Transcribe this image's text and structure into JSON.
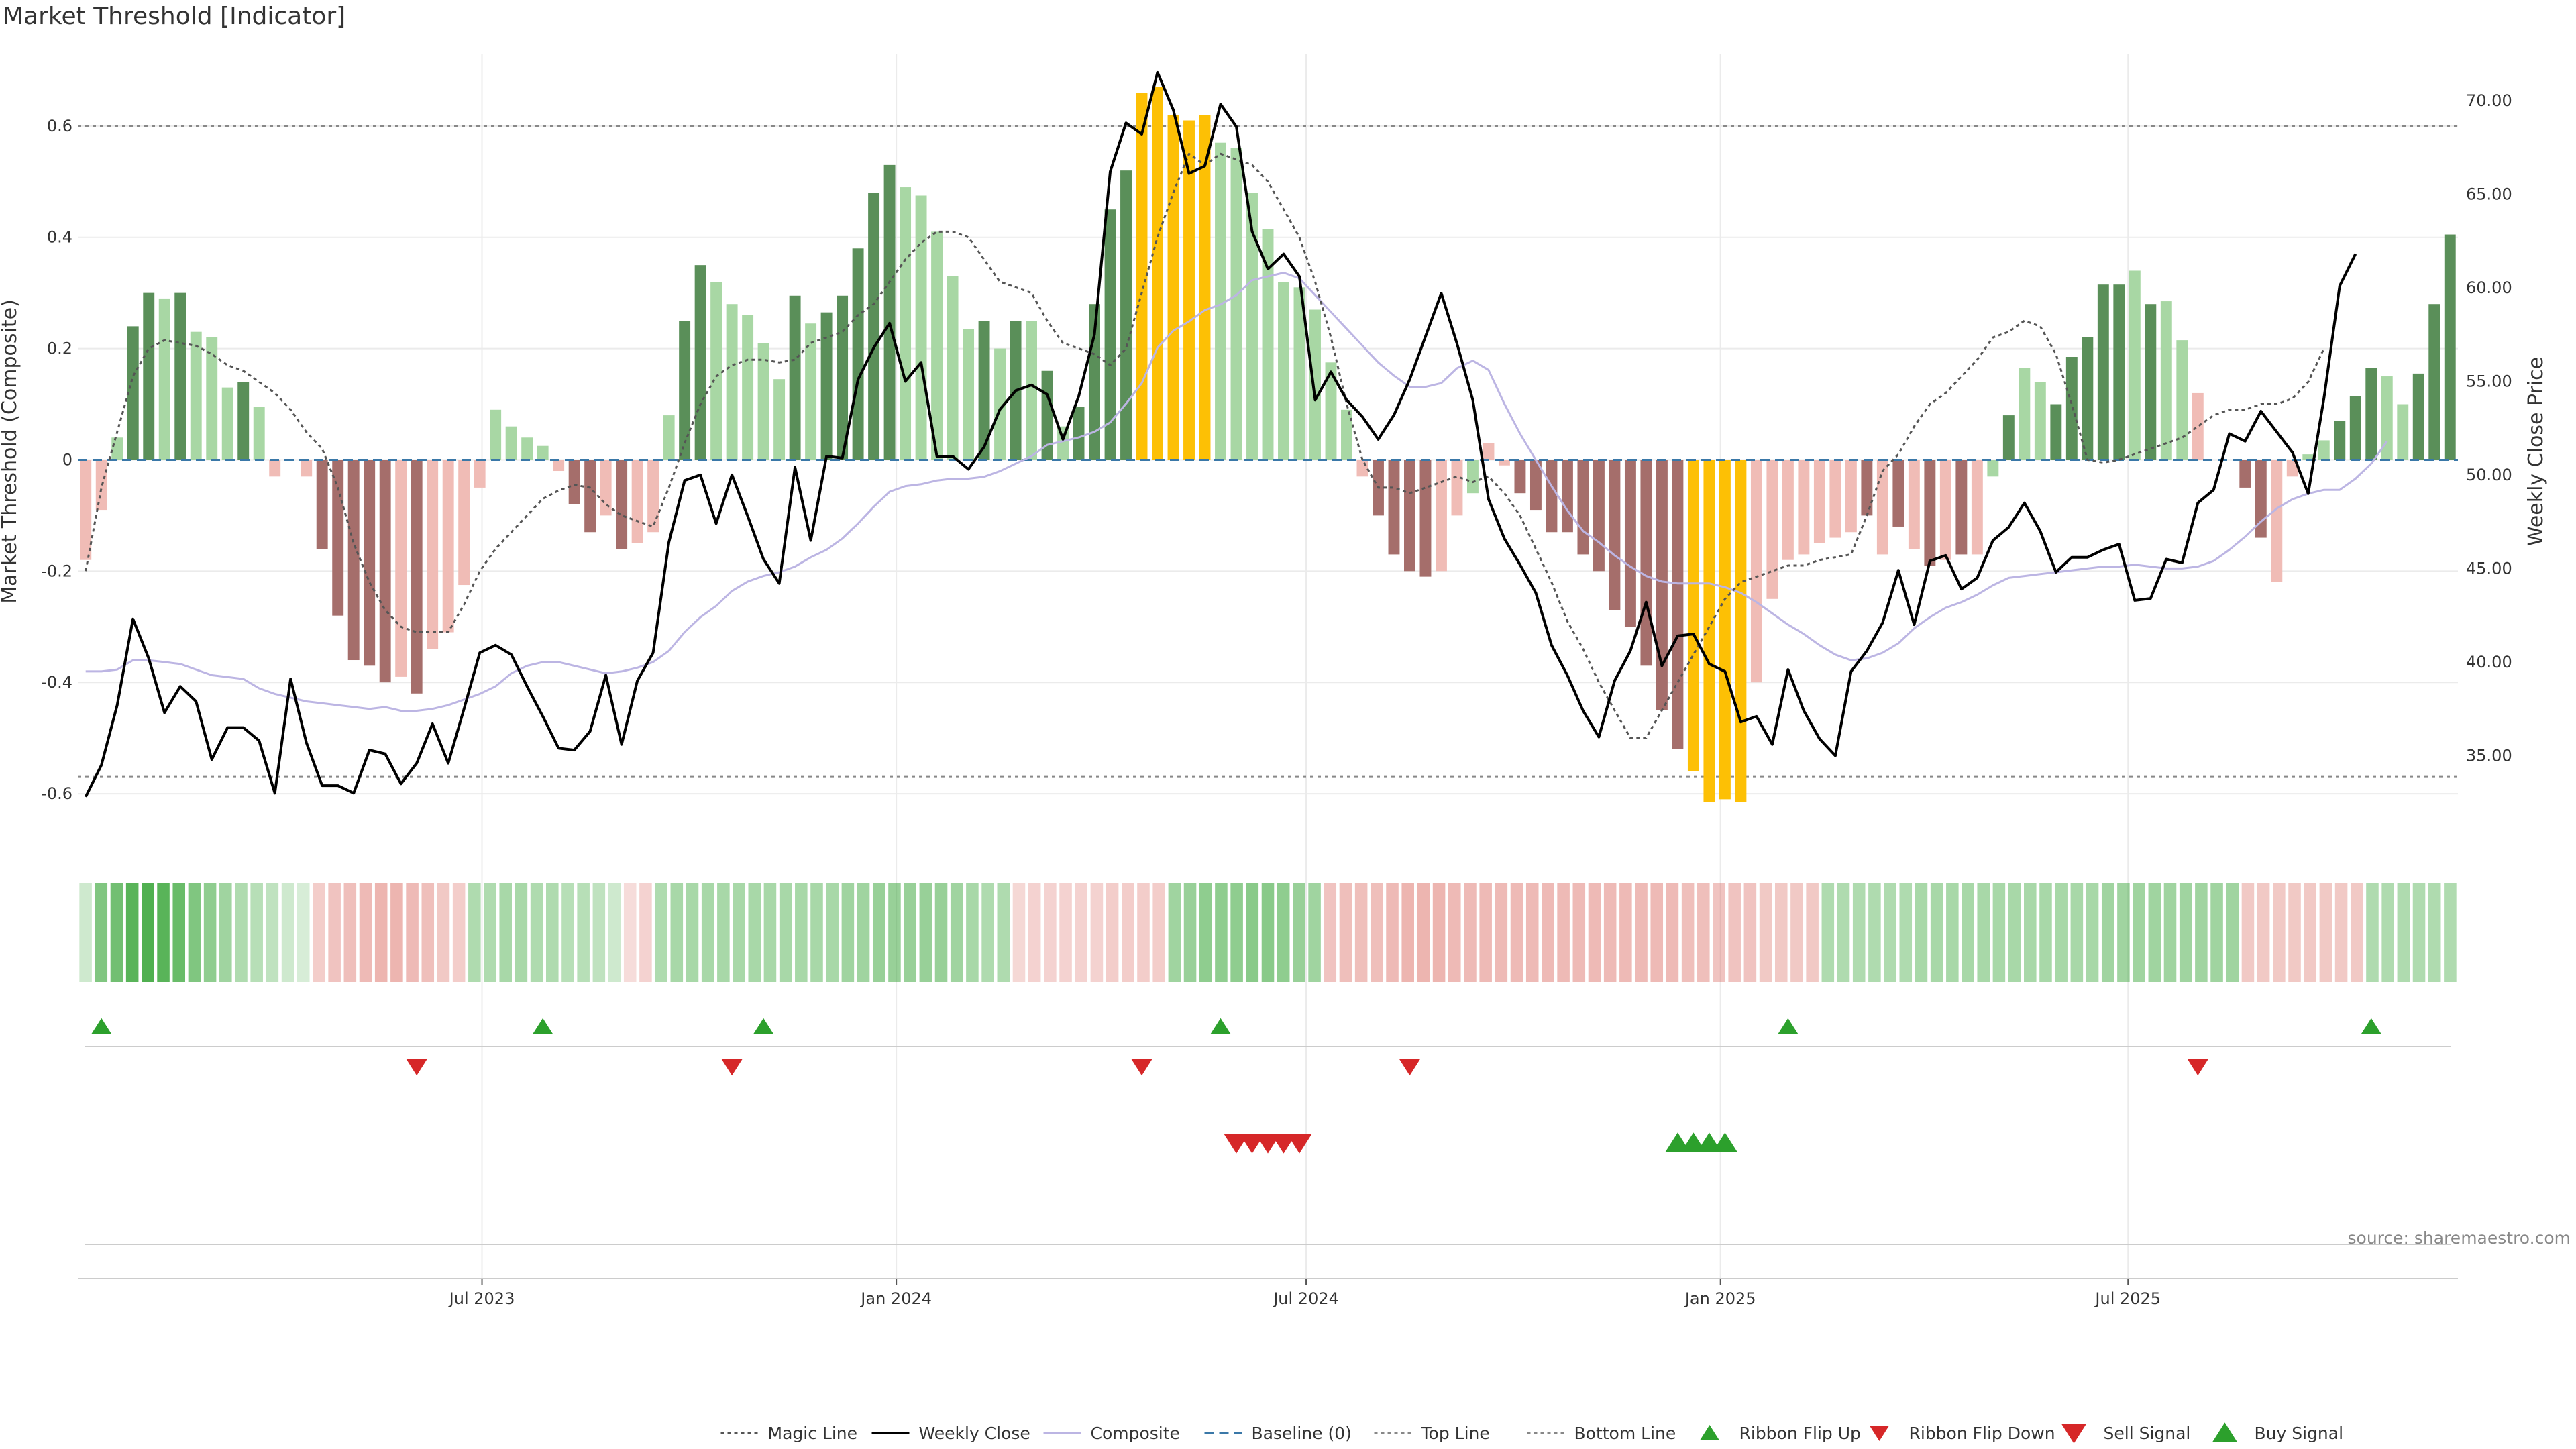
{
  "title": "Market Threshold [Indicator]",
  "source": "source: sharemaestro.com",
  "colors": {
    "bar_pos_strong": "#5a8f59",
    "bar_pos_weak": "#a8d7a4",
    "bar_neg_strong": "#a56e6b",
    "bar_neg_weak": "#f0bcb6",
    "bar_extreme": "#fdc005",
    "magic_line": "#555555",
    "weekly_close": "#000000",
    "composite": "#bcb5e3",
    "baseline": "#3a78a8",
    "threshold_line": "#888888",
    "up_marker": "#2ca02c",
    "down_marker": "#d62728",
    "grid": "#ebebeb"
  },
  "chart_data": {
    "type": "bar",
    "x_axis": {
      "type": "date",
      "start_date": "2023-01-06",
      "frequency": "weekly",
      "tick_labels": [
        "Jul 2023",
        "Jan 2024",
        "Jul 2024",
        "Jan 2025",
        "Jul 2025"
      ],
      "tick_dates": [
        "2023-07-01",
        "2024-01-01",
        "2024-07-01",
        "2025-01-01",
        "2025-07-01"
      ]
    },
    "y_left": {
      "label": "Market Threshold (Composite)",
      "range": [
        -0.7,
        0.73
      ],
      "ticks": [
        -0.6,
        -0.4,
        -0.2,
        0,
        0.2,
        0.4,
        0.6
      ],
      "tick_labels": [
        "-0.6",
        "-0.4",
        "-0.2",
        "0",
        "0.2",
        "0.4",
        "0.6"
      ]
    },
    "y_right": {
      "label": "Weekly Close Price",
      "range": [
        30.0,
        72.5
      ],
      "ticks": [
        35,
        40,
        45,
        50,
        55,
        60,
        65,
        70
      ],
      "tick_labels": [
        "35.00",
        "40.00",
        "45.00",
        "50.00",
        "55.00",
        "60.00",
        "65.00",
        "70.00"
      ]
    },
    "top_line": 0.6,
    "bottom_line": -0.57,
    "baseline": 0,
    "histogram": {
      "name": "Market Threshold",
      "values": [
        -0.18,
        -0.09,
        0.04,
        0.24,
        0.3,
        0.29,
        0.3,
        0.23,
        0.22,
        0.13,
        0.14,
        0.095,
        -0.03,
        0,
        -0.03,
        -0.16,
        -0.28,
        -0.36,
        -0.37,
        -0.4,
        -0.39,
        -0.42,
        -0.34,
        -0.31,
        -0.225,
        -0.05,
        0.09,
        0.06,
        0.04,
        0.025,
        -0.02,
        -0.08,
        -0.13,
        -0.1,
        -0.16,
        -0.15,
        -0.13,
        0.08,
        0.25,
        0.35,
        0.32,
        0.28,
        0.26,
        0.21,
        0.145,
        0.295,
        0.245,
        0.265,
        0.295,
        0.38,
        0.48,
        0.53,
        0.49,
        0.475,
        0.41,
        0.33,
        0.235,
        0.25,
        0.2,
        0.25,
        0.25,
        0.16,
        0.06,
        0.095,
        0.28,
        0.45,
        0.52,
        0.66,
        0.67,
        0.62,
        0.61,
        0.62,
        0.57,
        0.56,
        0.48,
        0.415,
        0.32,
        0.31,
        0.27,
        0.175,
        0.09,
        -0.03,
        -0.1,
        -0.17,
        -0.2,
        -0.21,
        -0.2,
        -0.1,
        -0.06,
        0.03,
        -0.01,
        -0.06,
        -0.09,
        -0.13,
        -0.13,
        -0.17,
        -0.2,
        -0.27,
        -0.3,
        -0.37,
        -0.45,
        -0.52,
        -0.56,
        -0.615,
        -0.61,
        -0.615,
        -0.4,
        -0.25,
        -0.18,
        -0.17,
        -0.15,
        -0.14,
        -0.13,
        -0.1,
        -0.17,
        -0.12,
        -0.16,
        -0.19,
        -0.18,
        -0.17,
        -0.17,
        -0.03,
        0.08,
        0.165,
        0.14,
        0.1,
        0.185,
        0.22,
        0.315,
        0.315,
        0.34,
        0.28,
        0.285,
        0.215,
        0.12,
        0,
        0,
        -0.05,
        -0.14,
        -0.22,
        -0.03,
        0.01,
        0.035,
        0.07,
        0.115,
        0.165,
        0.15,
        0.1,
        0.155,
        0.28,
        0.405
      ],
      "categories": [
        "pos_weak",
        "pos_strong",
        "neg_weak",
        "neg_strong",
        "extreme"
      ],
      "category_codes": [
        "NW",
        "NW",
        "PW",
        "PS",
        "PS",
        "PW",
        "PS",
        "PW",
        "PW",
        "PW",
        "PS",
        "PW",
        "NW",
        "NW",
        "NW",
        "NS",
        "NS",
        "NS",
        "NS",
        "NS",
        "NW",
        "NS",
        "NW",
        "NW",
        "NW",
        "NW",
        "PW",
        "PW",
        "PW",
        "PW",
        "NW",
        "NS",
        "NS",
        "NW",
        "NS",
        "NW",
        "NW",
        "PW",
        "PS",
        "PS",
        "PW",
        "PW",
        "PW",
        "PW",
        "PW",
        "PS",
        "PW",
        "PS",
        "PS",
        "PS",
        "PS",
        "PS",
        "PW",
        "PW",
        "PW",
        "PW",
        "PW",
        "PS",
        "PW",
        "PS",
        "PW",
        "PS",
        "PW",
        "PS",
        "PS",
        "PS",
        "PS",
        "EX",
        "EX",
        "EX",
        "EX",
        "EX",
        "PW",
        "PW",
        "PW",
        "PW",
        "PW",
        "PW",
        "PW",
        "PW",
        "PW",
        "NW",
        "NS",
        "NS",
        "NS",
        "NS",
        "NW",
        "NW",
        "PW",
        "NW",
        "NW",
        "NS",
        "NS",
        "NS",
        "NS",
        "NS",
        "NS",
        "NS",
        "NS",
        "NS",
        "NS",
        "NS",
        "EX",
        "EX",
        "EX",
        "EX",
        "NW",
        "NW",
        "NW",
        "NW",
        "NW",
        "NW",
        "NW",
        "NS",
        "NW",
        "NS",
        "NW",
        "NS",
        "NW",
        "NS",
        "NW",
        "PW",
        "PS",
        "PW",
        "PW",
        "PS",
        "PS",
        "PS",
        "PS",
        "PS",
        "PW",
        "PS",
        "PW",
        "PW",
        "NW",
        "NW",
        "NW",
        "NS",
        "NS",
        "NW",
        "NW",
        "PW",
        "PW",
        "PS",
        "PS",
        "PS",
        "PW",
        "PW",
        "PS",
        "PS",
        "PS"
      ]
    },
    "series": [
      {
        "name": "Weekly Close",
        "axis": "right",
        "values": [
          32.8,
          34.5,
          37.7,
          42.3,
          40.2,
          37.3,
          38.7,
          37.9,
          34.8,
          36.5,
          36.5,
          35.8,
          33.0,
          39.1,
          35.7,
          33.4,
          33.4,
          33.0,
          35.3,
          35.1,
          33.5,
          34.6,
          36.7,
          34.6,
          37.5,
          40.5,
          40.9,
          40.4,
          38.7,
          37.1,
          35.4,
          35.3,
          36.3,
          39.3,
          35.6,
          39.0,
          40.5,
          46.4,
          49.7,
          50.0,
          47.4,
          50.0,
          47.8,
          45.5,
          44.2,
          50.4,
          46.5,
          51.0,
          50.9,
          55.1,
          56.8,
          58.1,
          55.0,
          56.0,
          51.0,
          51.0,
          50.3,
          51.5,
          53.5,
          54.5,
          54.8,
          54.3,
          51.9,
          54.2,
          57.5,
          66.2,
          68.8,
          68.2,
          71.5,
          69.5,
          66.1,
          66.5,
          69.8,
          68.6,
          63.0,
          61.0,
          61.8,
          60.6,
          54.0,
          55.5,
          54.0,
          53.1,
          51.9,
          53.2,
          55.1,
          57.4,
          59.7,
          57.0,
          54.0,
          48.7,
          46.6,
          45.2,
          43.7,
          40.9,
          39.3,
          37.4,
          36.0,
          39.0,
          40.6,
          43.2,
          39.8,
          41.4,
          41.5,
          39.9,
          39.5,
          36.8,
          37.1,
          35.6,
          39.6,
          37.4,
          35.9,
          35.0,
          39.5,
          40.6,
          42.1,
          44.9,
          42.0,
          45.4,
          45.7,
          43.9,
          44.5,
          46.5,
          47.2,
          48.5,
          47.0,
          44.8,
          45.6,
          45.6,
          46.0,
          46.3,
          43.3,
          43.4,
          45.5,
          45.3,
          48.5,
          49.2,
          52.2,
          51.8,
          53.4,
          52.3,
          51.2,
          49.0,
          54.1,
          60.1,
          61.8
        ]
      },
      {
        "name": "Composite",
        "axis": "right",
        "values": [
          39.5,
          39.5,
          39.6,
          40.1,
          40.1,
          40.0,
          39.9,
          39.6,
          39.3,
          39.2,
          39.1,
          38.6,
          38.3,
          38.1,
          37.9,
          37.8,
          37.7,
          37.6,
          37.5,
          37.6,
          37.4,
          37.4,
          37.5,
          37.7,
          38.0,
          38.3,
          38.7,
          39.4,
          39.8,
          40.0,
          40.0,
          39.8,
          39.6,
          39.4,
          39.5,
          39.7,
          40.0,
          40.6,
          41.6,
          42.4,
          43.0,
          43.8,
          44.3,
          44.6,
          44.8,
          45.1,
          45.6,
          46.0,
          46.6,
          47.4,
          48.3,
          49.1,
          49.4,
          49.5,
          49.7,
          49.8,
          49.8,
          49.9,
          50.2,
          50.6,
          51.0,
          51.6,
          51.8,
          52.0,
          52.3,
          52.8,
          53.8,
          54.9,
          56.8,
          57.7,
          58.2,
          58.8,
          59.1,
          59.6,
          60.4,
          60.6,
          60.8,
          60.5,
          59.6,
          58.7,
          57.8,
          56.9,
          56.0,
          55.3,
          54.7,
          54.7,
          54.9,
          55.7,
          56.1,
          55.6,
          53.8,
          52.2,
          50.8,
          49.4,
          48.1,
          47.0,
          46.4,
          45.7,
          45.1,
          44.6,
          44.3,
          44.2,
          44.2,
          44.2,
          44.0,
          43.7,
          43.2,
          42.6,
          42.0,
          41.5,
          40.9,
          40.4,
          40.1,
          40.2,
          40.5,
          41.0,
          41.8,
          42.4,
          42.9,
          43.2,
          43.6,
          44.1,
          44.5,
          44.6,
          44.7,
          44.8,
          44.9,
          45.0,
          45.1,
          45.1,
          45.2,
          45.1,
          45.0,
          45.0,
          45.1,
          45.4,
          46.0,
          46.7,
          47.5,
          48.2,
          48.7,
          49.0,
          49.2,
          49.2,
          49.8,
          50.6,
          51.8
        ]
      },
      {
        "name": "Magic Line",
        "axis": "left",
        "values": [
          -0.2,
          -0.05,
          0.05,
          0.15,
          0.2,
          0.215,
          0.21,
          0.205,
          0.19,
          0.17,
          0.16,
          0.14,
          0.12,
          0.09,
          0.05,
          0.02,
          -0.05,
          -0.15,
          -0.22,
          -0.27,
          -0.3,
          -0.31,
          -0.31,
          -0.31,
          -0.26,
          -0.2,
          -0.16,
          -0.13,
          -0.1,
          -0.07,
          -0.055,
          -0.045,
          -0.05,
          -0.08,
          -0.1,
          -0.11,
          -0.12,
          -0.05,
          0.03,
          0.1,
          0.15,
          0.17,
          0.18,
          0.18,
          0.175,
          0.18,
          0.21,
          0.22,
          0.23,
          0.26,
          0.28,
          0.32,
          0.36,
          0.39,
          0.41,
          0.41,
          0.4,
          0.36,
          0.32,
          0.31,
          0.3,
          0.25,
          0.21,
          0.2,
          0.19,
          0.17,
          0.2,
          0.3,
          0.4,
          0.48,
          0.55,
          0.53,
          0.55,
          0.54,
          0.53,
          0.5,
          0.45,
          0.4,
          0.32,
          0.22,
          0.1,
          0,
          -0.05,
          -0.05,
          -0.06,
          -0.05,
          -0.04,
          -0.03,
          -0.04,
          -0.03,
          -0.06,
          -0.1,
          -0.16,
          -0.22,
          -0.29,
          -0.34,
          -0.4,
          -0.45,
          -0.5,
          -0.5,
          -0.45,
          -0.4,
          -0.35,
          -0.3,
          -0.25,
          -0.22,
          -0.21,
          -0.2,
          -0.19,
          -0.19,
          -0.18,
          -0.175,
          -0.17,
          -0.1,
          -0.02,
          0.01,
          0.06,
          0.1,
          0.12,
          0.15,
          0.18,
          0.22,
          0.23,
          0.25,
          0.24,
          0.19,
          0.1,
          0,
          -0.005,
          0,
          0.01,
          0.02,
          0.03,
          0.04,
          0.06,
          0.08,
          0.09,
          0.09,
          0.1,
          0.1,
          0.11,
          0.14,
          0.2
        ]
      }
    ],
    "ribbon": {
      "label": "",
      "values": [
        0.1,
        0.6,
        0.7,
        0.85,
        0.9,
        0.85,
        0.75,
        0.6,
        0.5,
        0.4,
        0.3,
        0.25,
        0.2,
        0.1,
        0.05,
        -0.25,
        -0.35,
        -0.4,
        -0.45,
        -0.5,
        -0.5,
        -0.45,
        -0.4,
        -0.3,
        -0.25,
        0.3,
        0.3,
        0.35,
        0.35,
        0.3,
        0.3,
        0.25,
        0.25,
        0.2,
        0.1,
        -0.1,
        -0.2,
        0.3,
        0.35,
        0.35,
        0.35,
        0.35,
        0.35,
        0.35,
        0.35,
        0.35,
        0.35,
        0.35,
        0.35,
        0.4,
        0.4,
        0.45,
        0.45,
        0.45,
        0.45,
        0.45,
        0.4,
        0.35,
        0.3,
        0.3,
        -0.15,
        -0.2,
        -0.2,
        -0.2,
        -0.2,
        -0.2,
        -0.25,
        -0.25,
        -0.25,
        -0.25,
        0.4,
        0.45,
        0.5,
        0.5,
        0.5,
        0.55,
        0.55,
        0.5,
        0.45,
        0.4,
        -0.35,
        -0.4,
        -0.4,
        -0.4,
        -0.45,
        -0.5,
        -0.5,
        -0.5,
        -0.45,
        -0.45,
        -0.45,
        -0.45,
        -0.45,
        -0.45,
        -0.45,
        -0.45,
        -0.45,
        -0.45,
        -0.45,
        -0.45,
        -0.45,
        -0.45,
        -0.45,
        -0.4,
        -0.4,
        -0.35,
        -0.35,
        -0.35,
        -0.3,
        -0.3,
        -0.3,
        -0.3,
        0.3,
        0.3,
        0.3,
        0.3,
        0.3,
        0.3,
        0.35,
        0.35,
        0.35,
        0.35,
        0.35,
        0.35,
        0.35,
        0.35,
        0.35,
        0.35,
        0.35,
        0.35,
        0.4,
        0.4,
        0.4,
        0.4,
        0.4,
        0.4,
        0.4,
        0.4,
        0.4,
        -0.3,
        -0.3,
        -0.3,
        -0.3,
        -0.3,
        -0.3,
        -0.3,
        -0.3,
        0.3,
        0.3,
        0.3,
        0.3,
        0.3,
        0.3
      ]
    },
    "ribbon_flip_up": [
      "2023-01-13",
      "2023-07-28",
      "2023-11-03",
      "2024-05-24",
      "2025-01-31",
      "2025-10-17"
    ],
    "ribbon_flip_down": [
      "2023-06-02",
      "2023-10-20",
      "2024-04-19",
      "2024-08-16",
      "2025-08-01"
    ],
    "sell_signal": [
      "2024-05-31",
      "2024-06-07",
      "2024-06-14",
      "2024-06-21",
      "2024-06-28"
    ],
    "buy_signal": [
      "2024-12-13",
      "2024-12-20",
      "2024-12-27",
      "2025-01-03"
    ],
    "legend": [
      {
        "label": "Magic Line",
        "symbol": "dotted-line"
      },
      {
        "label": "Weekly Close",
        "symbol": "solid-line"
      },
      {
        "label": "Composite",
        "symbol": "lavender-line"
      },
      {
        "label": "Baseline (0)",
        "symbol": "dashed-line"
      },
      {
        "label": "Top Line",
        "symbol": "dotted-gray-line"
      },
      {
        "label": "Bottom Line",
        "symbol": "dotted-gray-line"
      },
      {
        "label": "Ribbon Flip Up",
        "symbol": "triangle-up-small"
      },
      {
        "label": "Ribbon Flip Down",
        "symbol": "triangle-down-small"
      },
      {
        "label": "Sell Signal",
        "symbol": "triangle-down"
      },
      {
        "label": "Buy Signal",
        "symbol": "triangle-up"
      }
    ],
    "legend_position": "bottom-center",
    "grid": true
  }
}
